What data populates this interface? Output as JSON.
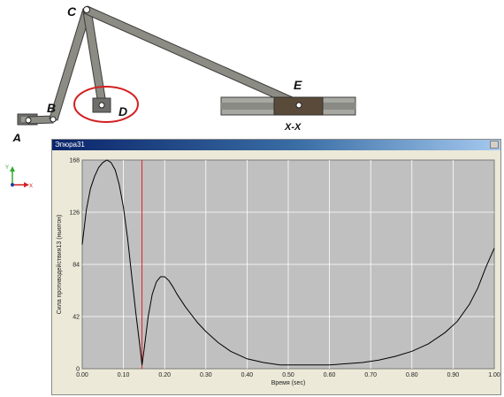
{
  "mechanism": {
    "labels": {
      "A": "A",
      "B": "B",
      "C": "C",
      "D": "D",
      "E": "E"
    },
    "slider_section_label": "X-X",
    "colors": {
      "link": "#8c8c84",
      "link_edge": "#3c3c3c",
      "highlight_circle": "#d42020",
      "slider_block": "#5a4a3a"
    }
  },
  "triad": {
    "y_label": "Y",
    "x_label": "X",
    "colors": {
      "y": "#2eaa2e",
      "x": "#d42020",
      "z": "#1e3ca0"
    }
  },
  "window": {
    "title": "Эпюра31",
    "close_icon": "close-icon"
  },
  "chart_data": {
    "type": "line",
    "title": "",
    "xlabel": "Время (sec)",
    "ylabel": "Сила противодействия13 (ньютон)",
    "xlim": [
      0,
      1.0
    ],
    "ylim": [
      0,
      168
    ],
    "x_ticks": [
      "0.00",
      "0.10",
      "0.20",
      "0.30",
      "0.40",
      "0.50",
      "0.60",
      "0.70",
      "0.80",
      "0.90",
      "1.00"
    ],
    "y_ticks": [
      "0",
      "42",
      "84",
      "126",
      "168"
    ],
    "grid": true,
    "background": "#c0c0c0",
    "line_color": "#000000",
    "marker": {
      "x": 0.145,
      "color": "#e02020"
    },
    "series": [
      {
        "x": [
          0.0,
          0.01,
          0.02,
          0.03,
          0.04,
          0.05,
          0.06,
          0.07,
          0.08,
          0.09,
          0.1,
          0.11,
          0.12,
          0.13,
          0.14,
          0.145,
          0.15,
          0.16,
          0.17,
          0.18,
          0.19,
          0.2,
          0.21,
          0.22,
          0.23,
          0.25,
          0.28,
          0.3,
          0.33,
          0.36,
          0.4,
          0.44,
          0.48,
          0.52,
          0.56,
          0.6,
          0.64,
          0.68,
          0.72,
          0.76,
          0.8,
          0.84,
          0.88,
          0.91,
          0.94,
          0.96,
          0.98,
          1.0
        ],
        "y": [
          100,
          128,
          145,
          155,
          162,
          166,
          168,
          166,
          160,
          148,
          130,
          105,
          75,
          45,
          18,
          3,
          15,
          42,
          60,
          70,
          74,
          74,
          71,
          66,
          60,
          50,
          37,
          30,
          21,
          14,
          8,
          5,
          3,
          3,
          3,
          3,
          4,
          5,
          7,
          10,
          14,
          20,
          29,
          38,
          52,
          65,
          82,
          97
        ]
      }
    ]
  }
}
